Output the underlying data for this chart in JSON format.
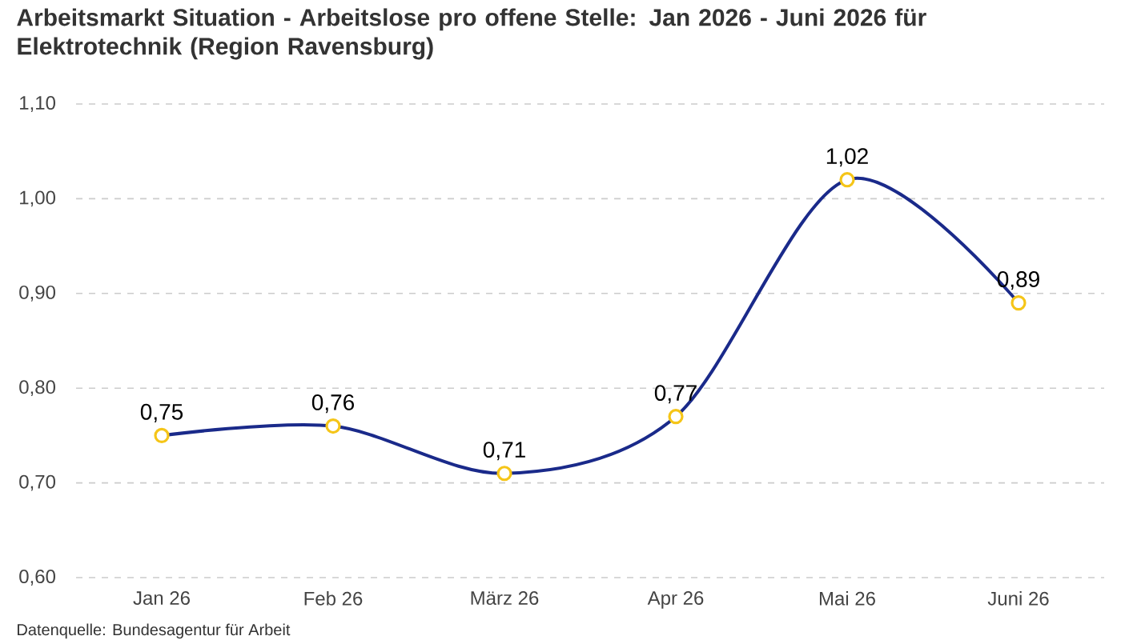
{
  "chart_data": {
    "type": "line",
    "title": "Arbeitsmarkt Situation - Arbeitslose pro offene Stelle: Jan 2026 - Juni 2026 für Elektrotechnik (Region Ravensburg)",
    "annotations": [
      "Datenquelle: Bundesagentur für Arbeit"
    ],
    "categories": [
      "Jan 26",
      "Feb 26",
      "März 26",
      "Apr 26",
      "Mai 26",
      "Juni 26"
    ],
    "series": [
      {
        "color": "#1a2a8a",
        "values": [
          0.75,
          0.76,
          0.71,
          0.77,
          1.02,
          0.89
        ],
        "value_labels": [
          "0,75",
          "0,76",
          "0,71",
          "0,77",
          "1,02",
          "0,89"
        ]
      }
    ],
    "ylim": [
      0.6,
      1.1
    ],
    "yticks": [
      {
        "value": 0.6,
        "label": "0,60"
      },
      {
        "value": 0.7,
        "label": "0,70"
      },
      {
        "value": 0.8,
        "label": "0,80"
      },
      {
        "value": 0.9,
        "label": "0,90"
      },
      {
        "value": 1.0,
        "label": "1,00"
      },
      {
        "value": 1.1,
        "label": "1,10"
      }
    ],
    "grid": "y",
    "marker": "circle",
    "line_style": "solid"
  }
}
